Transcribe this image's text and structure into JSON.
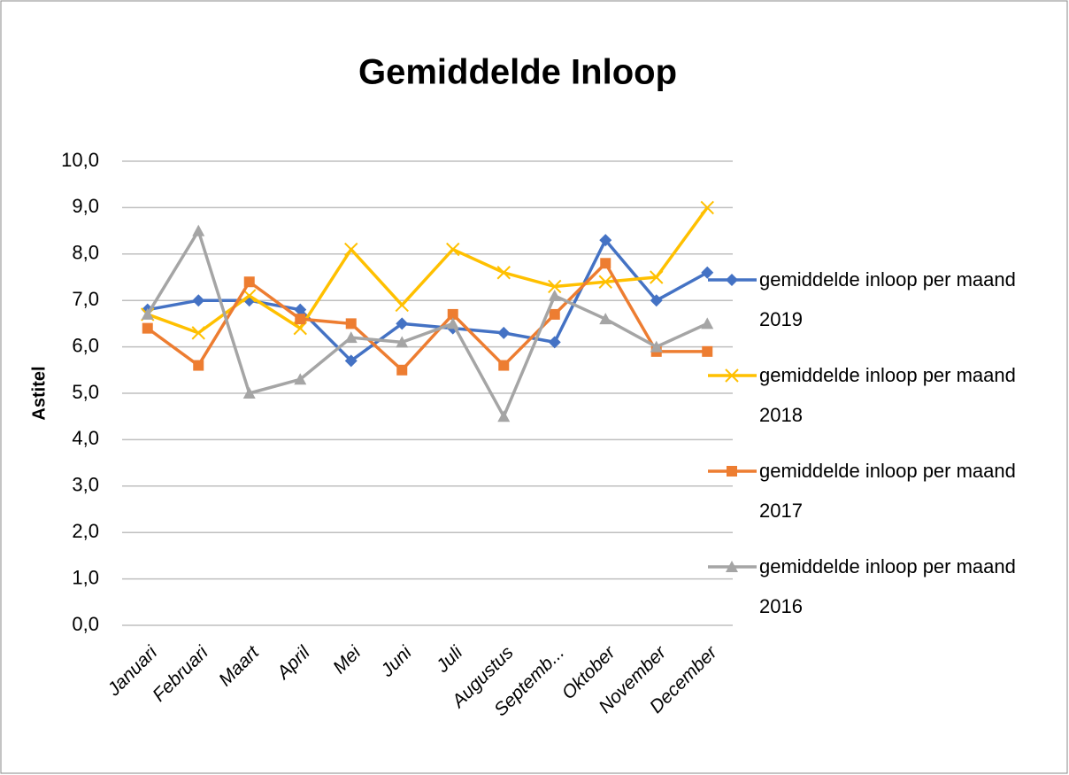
{
  "chart_data": {
    "type": "line",
    "title": "Gemiddelde Inloop",
    "y_label": "Astitel",
    "categories": [
      "Januari",
      "Februari",
      "Maart",
      "April",
      "Mei",
      "Juni",
      "Juli",
      "Augustus",
      "Septemb...",
      "Oktober",
      "November",
      "December"
    ],
    "series": [
      {
        "name": "gemiddelde inloop per maand 2019",
        "color": "#4472c4",
        "marker": "diamond",
        "values": [
          6.8,
          7.0,
          7.0,
          6.8,
          5.7,
          6.5,
          6.4,
          6.3,
          6.1,
          8.3,
          7.0,
          7.6
        ]
      },
      {
        "name": "gemiddelde inloop per maand 2018",
        "color": "#ffc000",
        "marker": "x",
        "values": [
          6.7,
          6.3,
          7.1,
          6.4,
          8.1,
          6.9,
          8.1,
          7.6,
          7.3,
          7.4,
          7.5,
          9.0
        ]
      },
      {
        "name": "gemiddelde inloop per maand 2017",
        "color": "#ed7d31",
        "marker": "square",
        "values": [
          6.4,
          5.6,
          7.4,
          6.6,
          6.5,
          5.5,
          6.7,
          5.6,
          6.7,
          7.8,
          5.9,
          5.9
        ]
      },
      {
        "name": "gemiddelde inloop per maand 2016",
        "color": "#a5a5a5",
        "marker": "triangle",
        "values": [
          6.7,
          8.5,
          5.0,
          5.3,
          6.2,
          6.1,
          6.5,
          4.5,
          7.1,
          6.6,
          6.0,
          6.5
        ]
      }
    ],
    "ylim": [
      0,
      10
    ],
    "yticks": [
      {
        "value": 0,
        "label": "0,0"
      },
      {
        "value": 1,
        "label": "1,0"
      },
      {
        "value": 2,
        "label": "2,0"
      },
      {
        "value": 3,
        "label": "3,0"
      },
      {
        "value": 4,
        "label": "4,0"
      },
      {
        "value": 5,
        "label": "5,0"
      },
      {
        "value": 6,
        "label": "6,0"
      },
      {
        "value": 7,
        "label": "7,0"
      },
      {
        "value": 8,
        "label": "8,0"
      },
      {
        "value": 9,
        "label": "9,0"
      },
      {
        "value": 10,
        "label": "10,0"
      }
    ],
    "grid": true,
    "legend": "right"
  }
}
